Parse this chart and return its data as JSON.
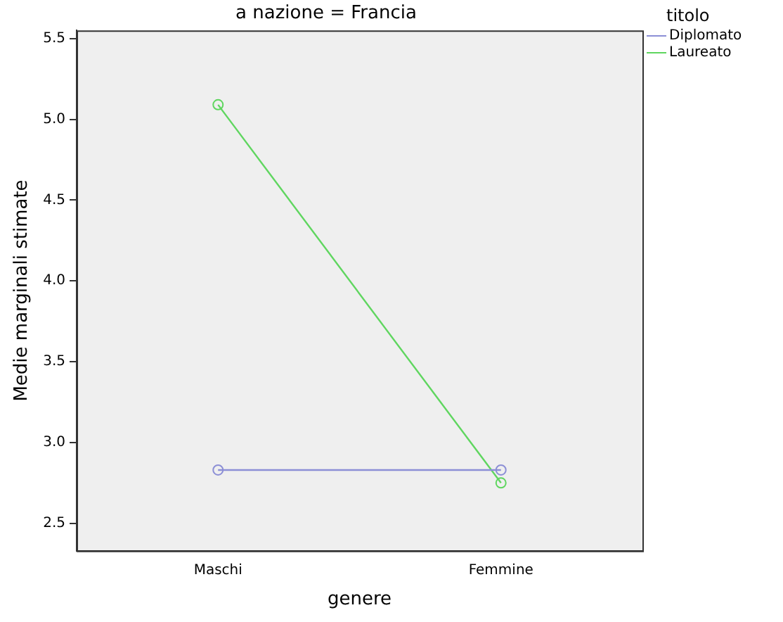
{
  "chart_data": {
    "type": "line",
    "title": "a nazione = Francia",
    "xlabel": "genere",
    "ylabel": "Medie marginali stimate",
    "legend_title": "titolo",
    "categories": [
      "Maschi",
      "Femmine"
    ],
    "series": [
      {
        "name": "Diplomato",
        "color": "#8c8fd6",
        "values": [
          2.83,
          2.83
        ]
      },
      {
        "name": "Laureato",
        "color": "#5fd65f",
        "values": [
          5.09,
          2.75
        ]
      }
    ],
    "ylim": [
      2.33,
      5.55
    ],
    "yticks": [
      2.5,
      {
        "value": 3,
        "label": "3.0"
      },
      3.5,
      {
        "value": 4,
        "label": "4.0"
      },
      4.5,
      {
        "value": 5,
        "label": "5.0"
      },
      5.5
    ],
    "grid": false,
    "legend": "top right",
    "marker": "circle",
    "line_style": "solid"
  }
}
